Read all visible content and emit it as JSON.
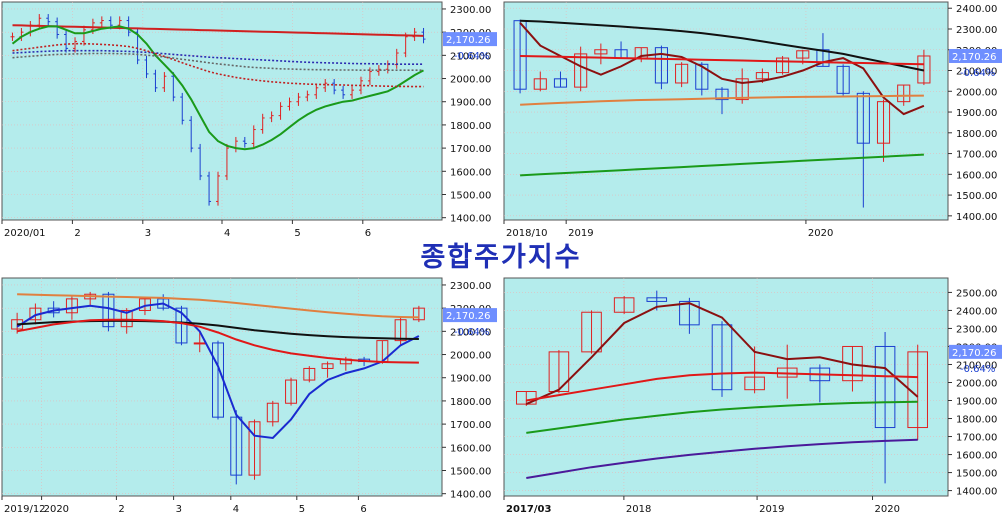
{
  "title": "종합주가지수",
  "colors": {
    "plot_bg": "#b4ecec",
    "axis_bg": "#ffffff",
    "grid": "#e6b8b8",
    "up_candle": "#e02020",
    "down_candle": "#1a3fd0",
    "price_badge": "#6f8fff"
  },
  "chart_data": [
    {
      "id": "daily",
      "type": "candlestick",
      "period": "daily",
      "x_tick_labels": [
        "2020/01",
        "2",
        "3",
        "4",
        "5",
        "6"
      ],
      "y_tick_labels": [
        "2300.00",
        "2200.00",
        "2100.00",
        "2000.00",
        "1900.00",
        "1800.00",
        "1700.00",
        "1600.00",
        "1500.00",
        "1400.00"
      ],
      "ylim": [
        1390,
        2330
      ],
      "last_value": "2,170.26",
      "change": "-0.64%",
      "closes": [
        2180,
        2200,
        2230,
        2260,
        2245,
        2190,
        2130,
        2160,
        2210,
        2240,
        2250,
        2230,
        2250,
        2200,
        2080,
        2020,
        1960,
        2010,
        1920,
        1820,
        1700,
        1580,
        1470,
        1580,
        1700,
        1730,
        1720,
        1780,
        1830,
        1840,
        1880,
        1900,
        1920,
        1930,
        1960,
        1980,
        1950,
        1930,
        1950,
        1990,
        2030,
        2040,
        2060,
        2110,
        2180,
        2200,
        2170
      ],
      "series": [
        {
          "color": "#d02020",
          "values": [
            2230,
            2229,
            2228,
            2227,
            2226,
            2225,
            2224,
            2223,
            2222,
            2221,
            2220,
            2219,
            2218,
            2217,
            2216,
            2215,
            2214,
            2213,
            2212,
            2211,
            2210,
            2209,
            2208,
            2207,
            2206,
            2205,
            2204,
            2203,
            2202,
            2201,
            2200,
            2199,
            2198,
            2197,
            2196,
            2195,
            2194,
            2193,
            2192,
            2191,
            2190,
            2189,
            2188,
            2187,
            2186,
            2185,
            2184
          ]
        },
        {
          "color": "#1a9a1a",
          "values": [
            2150,
            2180,
            2200,
            2215,
            2225,
            2225,
            2210,
            2195,
            2195,
            2205,
            2215,
            2220,
            2225,
            2215,
            2190,
            2150,
            2100,
            2060,
            2020,
            1970,
            1910,
            1840,
            1770,
            1730,
            1710,
            1700,
            1695,
            1700,
            1715,
            1735,
            1760,
            1790,
            1820,
            1845,
            1865,
            1880,
            1890,
            1900,
            1905,
            1915,
            1925,
            1935,
            1945,
            1965,
            1990,
            2015,
            2035
          ]
        },
        {
          "color": "#2a2ab0",
          "values": [
            2110,
            2112,
            2114,
            2116,
            2118,
            2119,
            2120,
            2120,
            2120,
            2120,
            2120,
            2119,
            2118,
            2117,
            2115,
            2113,
            2110,
            2107,
            2104,
            2101,
            2098,
            2095,
            2092,
            2090,
            2088,
            2086,
            2084,
            2082,
            2080,
            2078,
            2076,
            2074,
            2072,
            2070,
            2069,
            2068,
            2067,
            2066,
            2065,
            2064,
            2064,
            2063,
            2063,
            2062,
            2062,
            2062,
            2062
          ]
        },
        {
          "color": "#c02020",
          "values": [
            2120,
            2125,
            2130,
            2135,
            2140,
            2145,
            2148,
            2150,
            2150,
            2149,
            2147,
            2145,
            2142,
            2138,
            2130,
            2120,
            2108,
            2095,
            2082,
            2068,
            2055,
            2042,
            2030,
            2020,
            2012,
            2005,
            1999,
            1994,
            1990,
            1986,
            1983,
            1980,
            1978,
            1976,
            1975,
            1974,
            1973,
            1972,
            1971,
            1970,
            1969,
            1968,
            1967,
            1966,
            1966,
            1965,
            1965
          ]
        },
        {
          "color": "#666666",
          "values": [
            2090,
            2093,
            2096,
            2099,
            2102,
            2104,
            2105,
            2106,
            2107,
            2108,
            2108,
            2108,
            2107,
            2106,
            2104,
            2101,
            2097,
            2093,
            2088,
            2083,
            2078,
            2073,
            2068,
            2063,
            2059,
            2055,
            2051,
            2048,
            2046,
            2044,
            2042,
            2041,
            2040,
            2039,
            2038,
            2038,
            2037,
            2037,
            2037,
            2036,
            2036,
            2036,
            2036,
            2036,
            2036,
            2036,
            2036
          ]
        }
      ]
    },
    {
      "id": "monthly",
      "type": "candlestick",
      "period": "monthly",
      "x_tick_labels": [
        "2018/10",
        "2019",
        "2020"
      ],
      "y_tick_labels": [
        "2400.00",
        "2300.00",
        "2200.00",
        "2100.00",
        "2000.00",
        "1900.00",
        "1800.00",
        "1700.00",
        "1600.00",
        "1500.00",
        "1400.00"
      ],
      "ylim": [
        1380,
        2430
      ],
      "last_value": "2,170.26",
      "change": "-0.64%",
      "candles": [
        {
          "o": 2340,
          "h": 2345,
          "l": 1990,
          "c": 2010
        },
        {
          "o": 2010,
          "h": 2095,
          "l": 2000,
          "c": 2060
        },
        {
          "o": 2060,
          "h": 2095,
          "l": 2020,
          "c": 2020
        },
        {
          "o": 2020,
          "h": 2215,
          "l": 2000,
          "c": 2180
        },
        {
          "o": 2180,
          "h": 2230,
          "l": 2130,
          "c": 2200
        },
        {
          "o": 2200,
          "h": 2240,
          "l": 2160,
          "c": 2160
        },
        {
          "o": 2160,
          "h": 2210,
          "l": 2140,
          "c": 2210
        },
        {
          "o": 2210,
          "h": 2220,
          "l": 2010,
          "c": 2040
        },
        {
          "o": 2040,
          "h": 2140,
          "l": 2020,
          "c": 2130
        },
        {
          "o": 2130,
          "h": 2140,
          "l": 1980,
          "c": 2010
        },
        {
          "o": 2010,
          "h": 2020,
          "l": 1890,
          "c": 1960
        },
        {
          "o": 1960,
          "h": 2110,
          "l": 1940,
          "c": 2060
        },
        {
          "o": 2060,
          "h": 2110,
          "l": 2040,
          "c": 2090
        },
        {
          "o": 2090,
          "h": 2170,
          "l": 2080,
          "c": 2160
        },
        {
          "o": 2160,
          "h": 2200,
          "l": 2130,
          "c": 2195
        },
        {
          "o": 2200,
          "h": 2280,
          "l": 2120,
          "c": 2120
        },
        {
          "o": 2120,
          "h": 2130,
          "l": 1980,
          "c": 1990
        },
        {
          "o": 1990,
          "h": 2000,
          "l": 1440,
          "c": 1750
        },
        {
          "o": 1750,
          "h": 1960,
          "l": 1660,
          "c": 1950
        },
        {
          "o": 1950,
          "h": 2030,
          "l": 1930,
          "c": 2030
        },
        {
          "o": 2040,
          "h": 2200,
          "l": 2030,
          "c": 2170
        }
      ],
      "series": [
        {
          "color": "#8b1010",
          "values": [
            2330,
            2220,
            2170,
            2120,
            2080,
            2120,
            2170,
            2180,
            2165,
            2120,
            2060,
            2040,
            2050,
            2070,
            2100,
            2140,
            2160,
            2110,
            1970,
            1890,
            1930
          ]
        },
        {
          "color": "#111111",
          "values": [
            2340,
            2336,
            2330,
            2324,
            2318,
            2312,
            2305,
            2298,
            2290,
            2280,
            2268,
            2255,
            2240,
            2225,
            2210,
            2195,
            2180,
            2160,
            2140,
            2120,
            2100
          ]
        },
        {
          "color": "#e01818",
          "values": [
            2170,
            2168,
            2166,
            2164,
            2162,
            2160,
            2158,
            2156,
            2154,
            2152,
            2150,
            2148,
            2146,
            2144,
            2142,
            2140,
            2138,
            2136,
            2134,
            2132,
            2130
          ]
        },
        {
          "color": "#e08040",
          "values": [
            1935,
            1940,
            1944,
            1948,
            1952,
            1955,
            1958,
            1960,
            1962,
            1964,
            1966,
            1968,
            1970,
            1972,
            1973,
            1974,
            1975,
            1976,
            1977,
            1978,
            1979
          ]
        },
        {
          "color": "#1a9a1a",
          "values": [
            1595,
            1600,
            1605,
            1610,
            1615,
            1620,
            1625,
            1630,
            1635,
            1640,
            1645,
            1650,
            1655,
            1660,
            1665,
            1670,
            1675,
            1680,
            1685,
            1690,
            1695
          ]
        }
      ]
    },
    {
      "id": "weekly",
      "type": "candlestick",
      "period": "weekly",
      "x_tick_labels": [
        "2019/12",
        "2020",
        "2",
        "3",
        "4",
        "5",
        "6"
      ],
      "y_tick_labels": [
        "2300.00",
        "2200.00",
        "2100.00",
        "2000.00",
        "1900.00",
        "1800.00",
        "1700.00",
        "1600.00",
        "1500.00",
        "1400.00"
      ],
      "ylim": [
        1390,
        2330
      ],
      "last_value": "2,170.26",
      "change": "-0.64%",
      "candles": [
        {
          "o": 2110,
          "h": 2180,
          "l": 2090,
          "c": 2150
        },
        {
          "o": 2150,
          "h": 2220,
          "l": 2130,
          "c": 2200
        },
        {
          "o": 2200,
          "h": 2230,
          "l": 2160,
          "c": 2180
        },
        {
          "o": 2180,
          "h": 2250,
          "l": 2150,
          "c": 2240
        },
        {
          "o": 2240,
          "h": 2270,
          "l": 2210,
          "c": 2260
        },
        {
          "o": 2260,
          "h": 2270,
          "l": 2100,
          "c": 2120
        },
        {
          "o": 2120,
          "h": 2200,
          "l": 2090,
          "c": 2190
        },
        {
          "o": 2190,
          "h": 2250,
          "l": 2170,
          "c": 2240
        },
        {
          "o": 2240,
          "h": 2260,
          "l": 2190,
          "c": 2200
        },
        {
          "o": 2200,
          "h": 2210,
          "l": 2040,
          "c": 2050
        },
        {
          "o": 2050,
          "h": 2100,
          "l": 2010,
          "c": 2050
        },
        {
          "o": 2050,
          "h": 2060,
          "l": 1720,
          "c": 1730
        },
        {
          "o": 1730,
          "h": 1760,
          "l": 1440,
          "c": 1480
        },
        {
          "o": 1480,
          "h": 1720,
          "l": 1460,
          "c": 1710
        },
        {
          "o": 1710,
          "h": 1800,
          "l": 1690,
          "c": 1790
        },
        {
          "o": 1790,
          "h": 1900,
          "l": 1780,
          "c": 1890
        },
        {
          "o": 1890,
          "h": 1950,
          "l": 1880,
          "c": 1940
        },
        {
          "o": 1940,
          "h": 1970,
          "l": 1900,
          "c": 1960
        },
        {
          "o": 1960,
          "h": 1990,
          "l": 1930,
          "c": 1980
        },
        {
          "o": 1980,
          "h": 1990,
          "l": 1950,
          "c": 1970
        },
        {
          "o": 1970,
          "h": 2060,
          "l": 1960,
          "c": 2060
        },
        {
          "o": 2060,
          "h": 2160,
          "l": 2040,
          "c": 2150
        },
        {
          "o": 2150,
          "h": 2210,
          "l": 2140,
          "c": 2200
        }
      ],
      "series": [
        {
          "color": "#1a2ad0",
          "values": [
            2120,
            2170,
            2190,
            2200,
            2210,
            2200,
            2180,
            2210,
            2220,
            2180,
            2100,
            1950,
            1740,
            1650,
            1640,
            1720,
            1830,
            1890,
            1920,
            1940,
            1970,
            2040,
            2080
          ]
        },
        {
          "color": "#e08040",
          "values": [
            2260,
            2258,
            2256,
            2254,
            2252,
            2250,
            2248,
            2246,
            2244,
            2240,
            2236,
            2230,
            2222,
            2214,
            2206,
            2198,
            2190,
            2182,
            2176,
            2170,
            2165,
            2162,
            2160
          ]
        },
        {
          "color": "#111111",
          "values": [
            2130,
            2135,
            2140,
            2142,
            2144,
            2145,
            2145,
            2144,
            2142,
            2138,
            2133,
            2125,
            2115,
            2105,
            2097,
            2090,
            2084,
            2079,
            2075,
            2072,
            2070,
            2068,
            2067
          ]
        },
        {
          "color": "#e01818",
          "values": [
            2100,
            2115,
            2130,
            2140,
            2148,
            2150,
            2150,
            2148,
            2144,
            2135,
            2120,
            2095,
            2065,
            2040,
            2020,
            2005,
            1995,
            1985,
            1978,
            1972,
            1968,
            1966,
            1965
          ]
        }
      ]
    },
    {
      "id": "quarterly",
      "type": "candlestick",
      "period": "quarterly",
      "x_tick_labels": [
        "2017/03",
        "2018",
        "2019",
        "2020"
      ],
      "y_tick_labels": [
        "2500.00",
        "2400.00",
        "2300.00",
        "2200.00",
        "2100.00",
        "2000.00",
        "1900.00",
        "1800.00",
        "1700.00",
        "1600.00",
        "1500.00",
        "1400.00"
      ],
      "ylim": [
        1370,
        2580
      ],
      "last_value": "2,170.26",
      "change": "-0.64%",
      "candles": [
        {
          "o": 1880,
          "h": 1950,
          "l": 1870,
          "c": 1950
        },
        {
          "o": 1950,
          "h": 2180,
          "l": 1940,
          "c": 2170
        },
        {
          "o": 2170,
          "h": 2400,
          "l": 2160,
          "c": 2390
        },
        {
          "o": 2390,
          "h": 2480,
          "l": 2380,
          "c": 2470
        },
        {
          "o": 2470,
          "h": 2510,
          "l": 2400,
          "c": 2450
        },
        {
          "o": 2450,
          "h": 2470,
          "l": 2270,
          "c": 2320
        },
        {
          "o": 2320,
          "h": 2340,
          "l": 1920,
          "c": 1960
        },
        {
          "o": 1960,
          "h": 2200,
          "l": 1940,
          "c": 2030
        },
        {
          "o": 2030,
          "h": 2210,
          "l": 1910,
          "c": 2080
        },
        {
          "o": 2080,
          "h": 2100,
          "l": 1890,
          "c": 2010
        },
        {
          "o": 2010,
          "h": 2200,
          "l": 1950,
          "c": 2200
        },
        {
          "o": 2200,
          "h": 2280,
          "l": 1440,
          "c": 1750
        },
        {
          "o": 1750,
          "h": 2210,
          "l": 1680,
          "c": 2170
        }
      ],
      "series": [
        {
          "color": "#8b1010",
          "values": [
            1880,
            1960,
            2140,
            2330,
            2420,
            2440,
            2360,
            2170,
            2130,
            2140,
            2100,
            2080,
            1920
          ]
        },
        {
          "color": "#e01818",
          "values": [
            1900,
            1930,
            1960,
            1990,
            2020,
            2040,
            2050,
            2055,
            2050,
            2045,
            2040,
            2035,
            2030
          ]
        },
        {
          "color": "#1a9a1a",
          "values": [
            1720,
            1745,
            1770,
            1795,
            1815,
            1835,
            1850,
            1862,
            1872,
            1880,
            1886,
            1890,
            1893
          ]
        },
        {
          "color": "#4a1a9a",
          "values": [
            1470,
            1500,
            1530,
            1555,
            1578,
            1598,
            1616,
            1632,
            1646,
            1658,
            1668,
            1676,
            1682
          ]
        }
      ]
    }
  ]
}
